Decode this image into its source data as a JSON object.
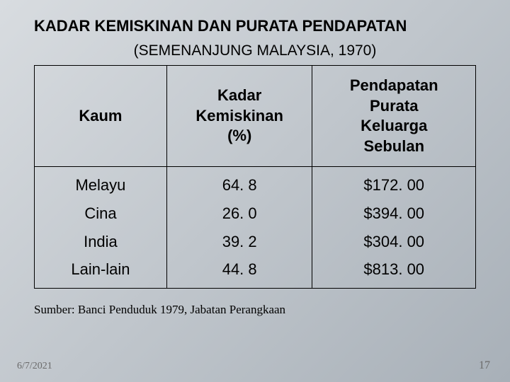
{
  "title": {
    "text": "KADAR KEMISKINAN DAN PURATA PENDAPATAN",
    "fontsize": 22,
    "color": "#000000",
    "weight": "bold"
  },
  "subtitle": {
    "text": "(SEMENANJUNG MALAYSIA, 1970)",
    "fontsize": 21,
    "color": "#000000"
  },
  "table": {
    "type": "table",
    "border_color": "#000000",
    "text_color": "#000000",
    "header_fontsize": 22,
    "cell_fontsize": 22,
    "columns": [
      {
        "label": "Kaum",
        "width_pct": 30
      },
      {
        "label": "Kadar\nKemiskinan\n(%)",
        "width_pct": 33
      },
      {
        "label": "Pendapatan\nPurata\nKeluarga\nSebulan",
        "width_pct": 37
      }
    ],
    "rows": [
      [
        "Melayu",
        "64. 8",
        "$172. 00"
      ],
      [
        "Cina",
        "26. 0",
        "$394. 00"
      ],
      [
        "India",
        "39. 2",
        "$304. 00"
      ],
      [
        "Lain-lain",
        "44. 8",
        "$813. 00"
      ]
    ]
  },
  "source": {
    "text": "Sumber: Banci Penduduk 1979, Jabatan Perangkaan",
    "fontsize": 17,
    "color": "#000000"
  },
  "footer": {
    "date": "6/7/2021",
    "page": "17"
  },
  "background": {
    "gradient_from": "#d8dce0",
    "gradient_mid": "#c0c6cc",
    "gradient_to": "#a8b0b8"
  }
}
